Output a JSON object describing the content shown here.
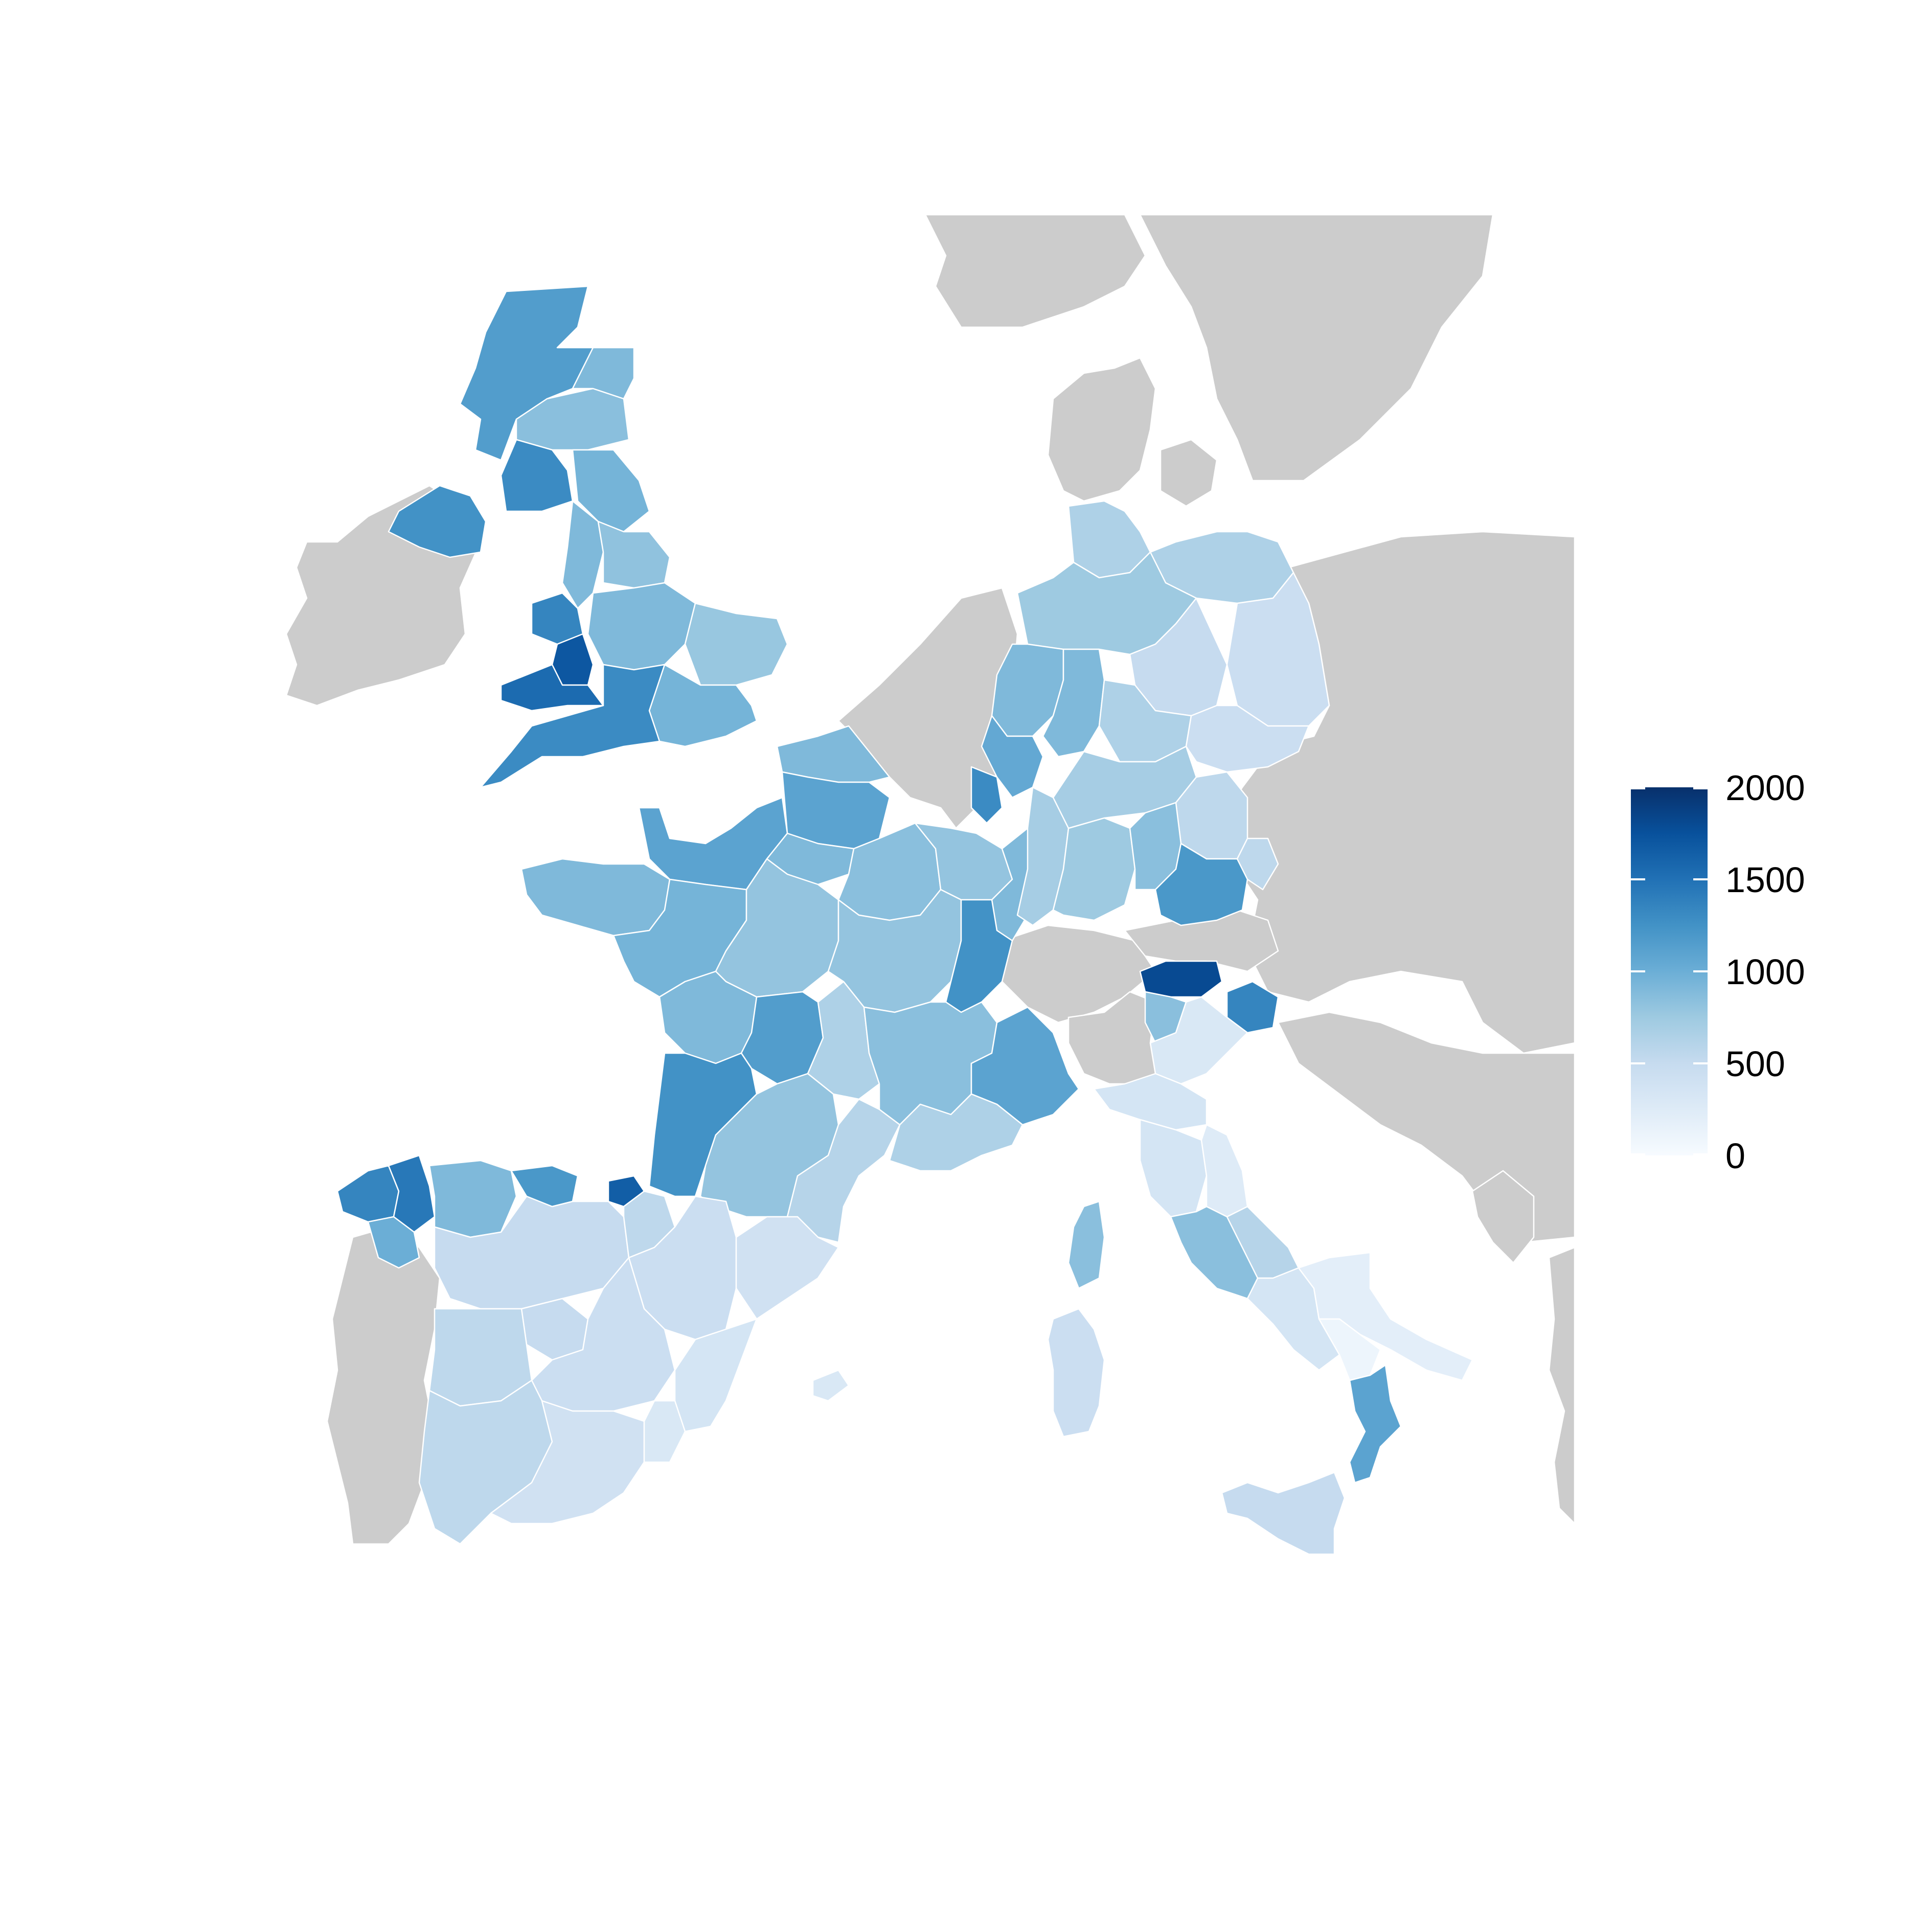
{
  "map": {
    "no_data_color": "#cccccc",
    "border_color": "#ffffff",
    "color_scale": {
      "min": 0,
      "max": 2000,
      "low_color": "#f7fbff",
      "high_color": "#08306b",
      "stops": [
        "#f7fbff",
        "#deebf7",
        "#c6dbef",
        "#9ecae1",
        "#6baed6",
        "#4292c6",
        "#2171b5",
        "#08519c",
        "#08306b"
      ]
    },
    "regions": [
      {
        "id": "scotland-highlands",
        "value": 1150
      },
      {
        "id": "scotland-east",
        "value": 850
      },
      {
        "id": "scotland-northeast",
        "value": 900
      },
      {
        "id": "scotland-southwest",
        "value": 1300
      },
      {
        "id": "northern-ireland",
        "value": 1250
      },
      {
        "id": "england-northeast",
        "value": 950
      },
      {
        "id": "england-northwest",
        "value": 900
      },
      {
        "id": "england-yorkshire",
        "value": 820
      },
      {
        "id": "england-midlands",
        "value": 900
      },
      {
        "id": "england-east",
        "value": 780
      },
      {
        "id": "england-southeast",
        "value": 950
      },
      {
        "id": "england-southwest",
        "value": 1300
      },
      {
        "id": "wales-north",
        "value": 1350
      },
      {
        "id": "wales-central",
        "value": 1700
      },
      {
        "id": "wales-south",
        "value": 1550
      },
      {
        "id": "france-nord",
        "value": 900
      },
      {
        "id": "france-picardie",
        "value": 1100
      },
      {
        "id": "france-normandie",
        "value": 1100
      },
      {
        "id": "france-bretagne",
        "value": 900
      },
      {
        "id": "france-pays-de-la-loire",
        "value": 950
      },
      {
        "id": "france-centre",
        "value": 800
      },
      {
        "id": "france-idf",
        "value": 900
      },
      {
        "id": "france-champagne",
        "value": 850
      },
      {
        "id": "france-lorraine",
        "value": 800
      },
      {
        "id": "france-alsace",
        "value": 900
      },
      {
        "id": "france-bourgogne",
        "value": 800
      },
      {
        "id": "france-franche-comte",
        "value": 1250
      },
      {
        "id": "france-poitou",
        "value": 900
      },
      {
        "id": "france-limousin",
        "value": 1150
      },
      {
        "id": "france-aquitaine",
        "value": 1250
      },
      {
        "id": "france-auvergne",
        "value": 650
      },
      {
        "id": "france-rhone-alpes",
        "value": 850
      },
      {
        "id": "france-midi-pyrenees",
        "value": 800
      },
      {
        "id": "france-languedoc",
        "value": 600
      },
      {
        "id": "france-paca",
        "value": 650
      },
      {
        "id": "france-alpes-east",
        "value": 1100
      },
      {
        "id": "spain-galicia-coast",
        "value": 1350
      },
      {
        "id": "spain-galicia-inland",
        "value": 1450
      },
      {
        "id": "spain-galicia-south",
        "value": 1000
      },
      {
        "id": "spain-asturias",
        "value": 900
      },
      {
        "id": "spain-cantabria",
        "value": 1200
      },
      {
        "id": "spain-basque",
        "value": 1650
      },
      {
        "id": "spain-castilla-north",
        "value": 500
      },
      {
        "id": "spain-navarra",
        "value": 550
      },
      {
        "id": "spain-aragon",
        "value": 450
      },
      {
        "id": "spain-catalonia",
        "value": 400
      },
      {
        "id": "spain-castilla-south",
        "value": 450
      },
      {
        "id": "spain-madrid",
        "value": 500
      },
      {
        "id": "spain-extremadura",
        "value": 550
      },
      {
        "id": "spain-valencia",
        "value": 350
      },
      {
        "id": "spain-andalucia-west",
        "value": 550
      },
      {
        "id": "spain-andalucia-east",
        "value": 400
      },
      {
        "id": "spain-murcia",
        "value": 300
      },
      {
        "id": "balearic-islands",
        "value": 300
      },
      {
        "id": "germany-schleswig",
        "value": 650
      },
      {
        "id": "germany-mecklenburg",
        "value": 650
      },
      {
        "id": "germany-brandenburg",
        "value": 450
      },
      {
        "id": "germany-niedersachsen",
        "value": 750
      },
      {
        "id": "germany-nrw",
        "value": 900
      },
      {
        "id": "germany-hessen",
        "value": 900
      },
      {
        "id": "germany-rheinland",
        "value": 1050
      },
      {
        "id": "germany-saar",
        "value": 1300
      },
      {
        "id": "germany-sachsen-anhalt",
        "value": 500
      },
      {
        "id": "germany-thueringen",
        "value": 650
      },
      {
        "id": "germany-sachsen",
        "value": 450
      },
      {
        "id": "germany-baden",
        "value": 700
      },
      {
        "id": "germany-wuerttemberg",
        "value": 750
      },
      {
        "id": "germany-bayern-north",
        "value": 700
      },
      {
        "id": "germany-bayern-east",
        "value": 550
      },
      {
        "id": "germany-bayern-south",
        "value": 1200
      },
      {
        "id": "germany-bayern-swabia",
        "value": 850
      },
      {
        "id": "italy-suedtirol",
        "value": 1800
      },
      {
        "id": "italy-trentino",
        "value": 850
      },
      {
        "id": "italy-friuli",
        "value": 1350
      },
      {
        "id": "italy-veneto",
        "value": 300
      },
      {
        "id": "italy-emilia",
        "value": 350
      },
      {
        "id": "italy-tuscany",
        "value": 350
      },
      {
        "id": "italy-marche",
        "value": 250
      },
      {
        "id": "italy-lazio",
        "value": 850
      },
      {
        "id": "italy-abruzzo",
        "value": 600
      },
      {
        "id": "italy-campania",
        "value": 350
      },
      {
        "id": "italy-puglia",
        "value": 200
      },
      {
        "id": "italy-basilicata",
        "value": 100
      },
      {
        "id": "italy-calabria",
        "value": 1100
      },
      {
        "id": "italy-sicily",
        "value": 500
      },
      {
        "id": "italy-sardinia",
        "value": 450
      },
      {
        "id": "france-corsica",
        "value": 850
      }
    ]
  },
  "legend": {
    "ticks": [
      {
        "value": 2000,
        "label": "2000"
      },
      {
        "value": 1500,
        "label": "1500"
      },
      {
        "value": 1000,
        "label": "1000"
      },
      {
        "value": 500,
        "label": "500"
      },
      {
        "value": 0,
        "label": "0"
      }
    ]
  }
}
